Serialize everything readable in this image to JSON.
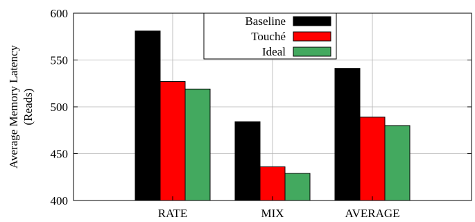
{
  "chart_data": {
    "type": "bar",
    "categories": [
      "RATE",
      "MIX",
      "AVERAGE"
    ],
    "series": [
      {
        "name": "Baseline",
        "color": "#000000",
        "values": [
          581,
          484,
          541
        ]
      },
      {
        "name": "Touché",
        "color": "#ff0000",
        "values": [
          527,
          436,
          489
        ]
      },
      {
        "name": "Ideal",
        "color": "#43a95f",
        "values": [
          519,
          429,
          480
        ]
      }
    ],
    "ylabel_line1": "Average Memory Latency",
    "ylabel_line2": "(Reads)",
    "ylim": [
      400,
      600
    ],
    "yticks": [
      400,
      450,
      500,
      550,
      600
    ],
    "grid": true,
    "legend_position": "top-center"
  }
}
